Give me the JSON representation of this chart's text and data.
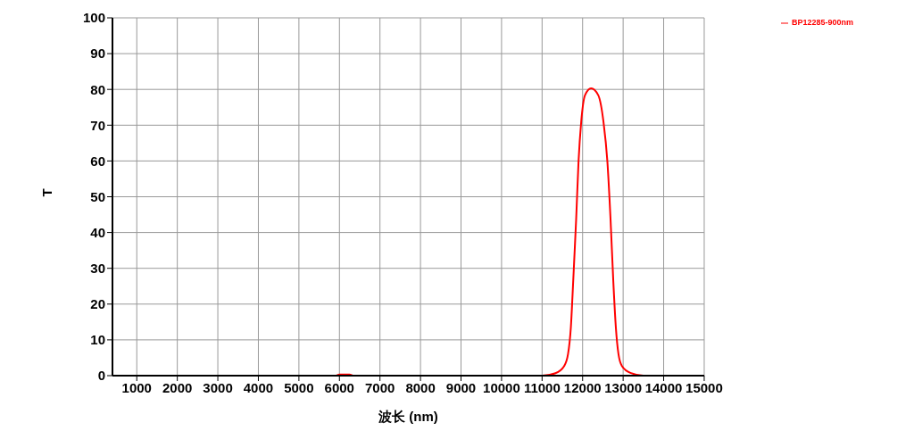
{
  "chart_data": {
    "type": "line",
    "xlabel": "波长 (nm)",
    "ylabel": "T",
    "series": [
      {
        "name": "BP12285-900nm",
        "color": "#ff0000",
        "x": [
          1000,
          5900,
          6000,
          6250,
          6350,
          11000,
          11330,
          11545,
          11640,
          11710,
          11770,
          11840,
          11900,
          11965,
          12060,
          12210,
          12385,
          12515,
          12610,
          12690,
          12755,
          12820,
          12885,
          12970,
          13195,
          13500,
          15000
        ],
        "values": [
          0,
          0,
          0.3,
          0.3,
          0,
          0,
          0.7,
          2.7,
          6,
          13.5,
          26.9,
          43.5,
          60,
          70.9,
          78.4,
          80.3,
          78.4,
          70.9,
          60,
          43.5,
          26.9,
          13.5,
          6,
          2.7,
          0.7,
          0,
          0
        ]
      }
    ],
    "xlim": [
      400,
      15000
    ],
    "xticks": [
      1000,
      2000,
      3000,
      4000,
      5000,
      6000,
      7000,
      8000,
      9000,
      10000,
      11000,
      12000,
      13000,
      14000,
      15000
    ],
    "ylim": [
      0,
      100
    ],
    "yticks": [
      0,
      10,
      20,
      30,
      40,
      50,
      60,
      70,
      80,
      90,
      100
    ],
    "grid": true,
    "legend": "top right",
    "marker": "none",
    "line_style": "solid"
  }
}
